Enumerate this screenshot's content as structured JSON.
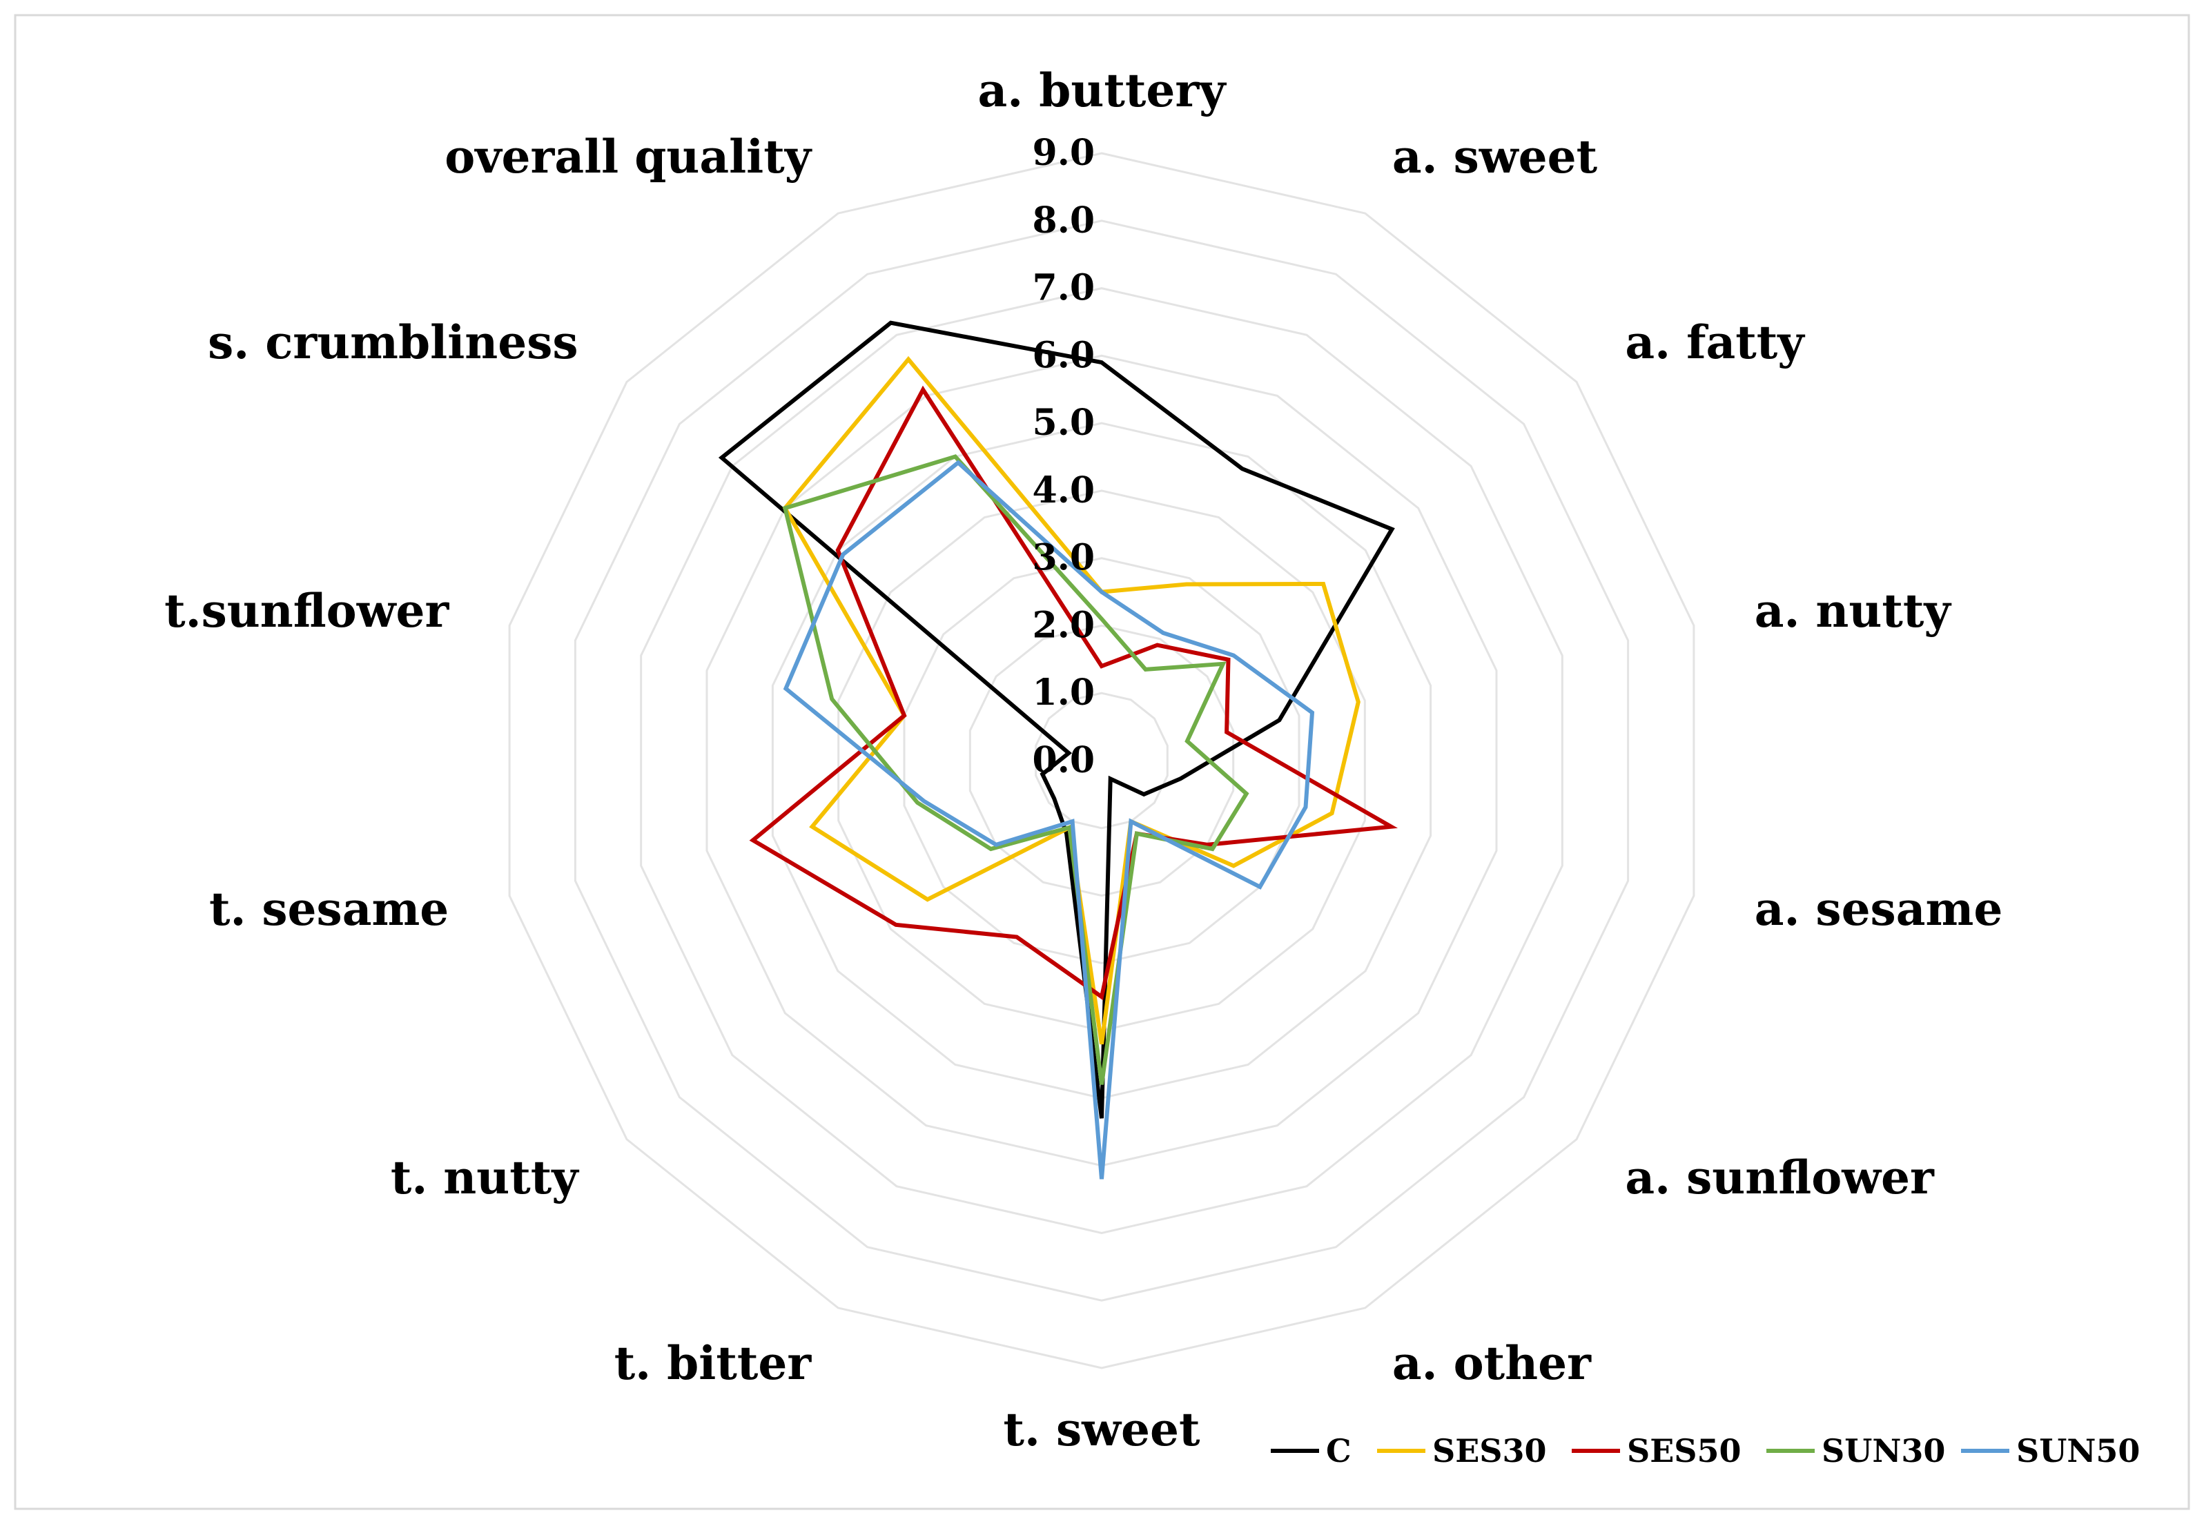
{
  "chart_data": {
    "type": "radar",
    "axes": [
      "a. buttery",
      "a. sweet",
      "a. fatty",
      "a. nutty",
      "a. sesame",
      "a. sunflower",
      "a. other",
      "t. sweet",
      "t. bitter",
      "t. nutty",
      "t. sesame",
      "t.sunflower",
      "s. crumbliness",
      "overall quality"
    ],
    "ticks": [
      "0.0",
      "1.0",
      "2.0",
      "3.0",
      "4.0",
      "5.0",
      "6.0",
      "7.0",
      "8.0",
      "9.0"
    ],
    "rlim": [
      0,
      9
    ],
    "grid": true,
    "legend_position": "bottom-right",
    "series": [
      {
        "name": "C",
        "color": "#000000",
        "values": [
          5.9,
          4.8,
          5.5,
          2.7,
          1.2,
          0.8,
          0.3,
          5.3,
          1.2,
          0.9,
          0.9,
          0.5,
          7.2,
          7.2
        ]
      },
      {
        "name": "SES30",
        "color": "#F5C000",
        "values": [
          2.5,
          2.9,
          4.2,
          3.9,
          3.5,
          2.5,
          1.0,
          4.2,
          1.1,
          3.3,
          4.4,
          3.0,
          6.0,
          6.6
        ]
      },
      {
        "name": "SES50",
        "color": "#C00000",
        "values": [
          1.4,
          1.9,
          2.4,
          1.9,
          4.4,
          2.0,
          1.2,
          3.5,
          2.9,
          3.9,
          5.3,
          3.0,
          5.0,
          6.1
        ]
      },
      {
        "name": "SUN30",
        "color": "#70AD47",
        "values": [
          2.1,
          1.5,
          2.3,
          1.3,
          2.2,
          2.1,
          1.2,
          4.8,
          1.1,
          2.1,
          2.8,
          4.1,
          6.0,
          5.0
        ]
      },
      {
        "name": "SUN50",
        "color": "#5B9BD5",
        "values": [
          2.5,
          2.1,
          2.5,
          3.2,
          3.1,
          3.0,
          1.0,
          6.2,
          1.0,
          2.0,
          2.7,
          4.8,
          4.9,
          4.9
        ]
      }
    ]
  }
}
